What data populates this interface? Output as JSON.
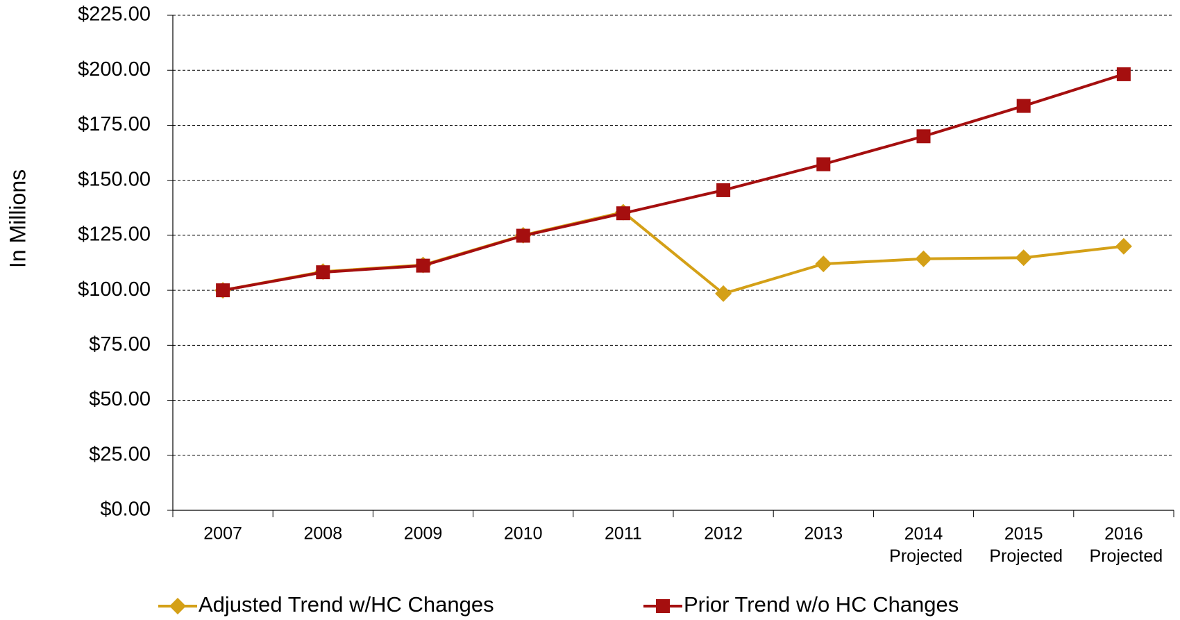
{
  "chart_data": {
    "type": "line",
    "y_label": "In Millions",
    "categories": [
      "2007",
      "2008",
      "2009",
      "2010",
      "2011",
      "2012",
      "2013",
      "2014 Projected",
      "2015 Projected",
      "2016 Projected"
    ],
    "series": [
      {
        "name": "Adjusted Trend w/HC Changes",
        "color": "#d4a017",
        "marker": "diamond",
        "values": [
          100,
          108.5,
          111.5,
          125,
          135.5,
          98.5,
          112,
          114.3,
          114.8,
          120
        ]
      },
      {
        "name": "Prior Trend w/o HC Changes",
        "color": "#a50f0f",
        "marker": "square",
        "values": [
          100,
          108.2,
          111.2,
          124.8,
          135,
          145.5,
          157.3,
          170,
          183.8,
          198.2
        ]
      }
    ],
    "ylim": [
      0,
      225
    ],
    "yticks": [
      {
        "value": 0,
        "label": "$0.00"
      },
      {
        "value": 25,
        "label": "$25.00"
      },
      {
        "value": 50,
        "label": "$50.00"
      },
      {
        "value": 75,
        "label": "$75.00"
      },
      {
        "value": 100,
        "label": "$100.00"
      },
      {
        "value": 125,
        "label": "$125.00"
      },
      {
        "value": 150,
        "label": "$150.00"
      },
      {
        "value": 175,
        "label": "$175.00"
      },
      {
        "value": 200,
        "label": "$200.00"
      },
      {
        "value": 225,
        "label": "$225.00"
      }
    ],
    "grid": true,
    "legend": "bottom"
  }
}
